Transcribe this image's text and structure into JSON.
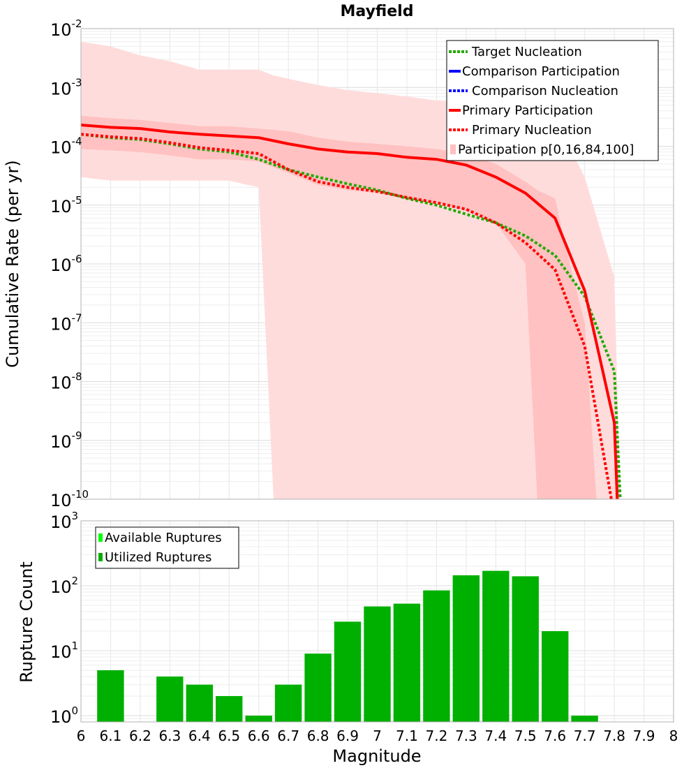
{
  "chart_data": [
    {
      "type": "line",
      "title": "Mayfield",
      "ylabel": "Cumulative Rate (per yr)",
      "xlabel": "",
      "xlim": [
        6,
        8
      ],
      "ylim": [
        1e-10,
        0.01
      ],
      "yscale": "log",
      "grid": true,
      "legend_position": "top-right",
      "y_ticks": [
        {
          "base": "10",
          "exp": "-10",
          "value": 1e-10
        },
        {
          "base": "10",
          "exp": "-9",
          "value": 1e-09
        },
        {
          "base": "10",
          "exp": "-8",
          "value": 1e-08
        },
        {
          "base": "10",
          "exp": "-7",
          "value": 1e-07
        },
        {
          "base": "10",
          "exp": "-6",
          "value": 1e-06
        },
        {
          "base": "10",
          "exp": "-5",
          "value": 1e-05
        },
        {
          "base": "10",
          "exp": "-4",
          "value": 0.0001
        },
        {
          "base": "10",
          "exp": "-3",
          "value": 0.001
        },
        {
          "base": "10",
          "exp": "-2",
          "value": 0.01
        }
      ],
      "legend": [
        {
          "label": "Target Nucleation",
          "color": "#22aa00",
          "style": "dotted"
        },
        {
          "label": "Comparison Participation",
          "color": "#0000ff",
          "style": "solid"
        },
        {
          "label": "Comparison Nucleation",
          "color": "#0000ff",
          "style": "dotted"
        },
        {
          "label": "Primary Participation",
          "color": "#ff0000",
          "style": "solid"
        },
        {
          "label": "Primary Nucleation",
          "color": "#ff0000",
          "style": "dotted"
        },
        {
          "label": "Participation p[0,16,84,100]",
          "color": "#ffc0c0",
          "style": "band"
        }
      ],
      "bands": {
        "outer": {
          "x": [
            6.0,
            6.1,
            6.2,
            6.3,
            6.4,
            6.5,
            6.6,
            6.65,
            6.7,
            6.8,
            6.9,
            7.0,
            7.1,
            7.2,
            7.3,
            7.4,
            7.5,
            7.6,
            7.7,
            7.8,
            7.82
          ],
          "high": [
            0.006,
            0.005,
            0.0035,
            0.0028,
            0.002,
            0.002,
            0.002,
            0.0016,
            0.0014,
            0.0011,
            0.0009,
            0.0008,
            0.0007,
            0.0006,
            0.00055,
            0.0005,
            0.0004,
            0.0003,
            3e-05,
            6e-07,
            1e-10
          ],
          "low": [
            3e-05,
            2.6e-05,
            2.6e-05,
            2.6e-05,
            2.6e-05,
            2.6e-05,
            2e-05,
            1e-10,
            1e-10,
            1e-10,
            1e-10,
            1e-10,
            1e-10,
            1e-10,
            1e-10,
            1e-10,
            1e-10,
            1e-10,
            1e-10,
            1e-10,
            1e-10
          ]
        },
        "inner": {
          "x": [
            6.0,
            6.1,
            6.2,
            6.3,
            6.4,
            6.5,
            6.6,
            6.7,
            6.8,
            6.9,
            7.0,
            7.1,
            7.2,
            7.3,
            7.4,
            7.5,
            7.54,
            7.6,
            7.65,
            7.7,
            7.74
          ],
          "high": [
            0.00033,
            0.0003,
            0.00028,
            0.00025,
            0.00022,
            0.00022,
            0.0002,
            0.00018,
            0.00014,
            0.00012,
            0.00011,
            0.0001,
            9e-05,
            7.5e-05,
            5e-05,
            2.5e-05,
            1.8e-05,
            1.3e-05,
            1e-06,
            1e-07,
            1e-10
          ],
          "low": [
            9e-05,
            8.5e-05,
            8e-05,
            7e-05,
            6e-05,
            6e-05,
            5.5e-05,
            3.5e-05,
            2.2e-05,
            1.8e-05,
            1.6e-05,
            1.3e-05,
            1.1e-05,
            8e-06,
            5e-06,
            1e-06,
            1e-10,
            1e-10,
            1e-10,
            1e-10,
            1e-10
          ]
        }
      },
      "series": [
        {
          "name": "Target Nucleation",
          "color": "#22aa00",
          "style": "dotted",
          "x": [
            6.0,
            6.1,
            6.2,
            6.3,
            6.4,
            6.5,
            6.6,
            6.7,
            6.8,
            6.9,
            7.0,
            7.1,
            7.2,
            7.3,
            7.4,
            7.5,
            7.6,
            7.7,
            7.8,
            7.82
          ],
          "y": [
            0.00016,
            0.00014,
            0.00013,
            0.00011,
            9e-05,
            8e-05,
            6e-05,
            4e-05,
            3e-05,
            2.3e-05,
            1.8e-05,
            1.3e-05,
            1e-05,
            7e-06,
            5e-06,
            3e-06,
            1.4e-06,
            2.8e-07,
            1.5e-08,
            1e-10
          ]
        },
        {
          "name": "Primary Participation",
          "color": "#ff0000",
          "style": "solid",
          "x": [
            6.0,
            6.1,
            6.2,
            6.3,
            6.4,
            6.5,
            6.6,
            6.7,
            6.8,
            6.9,
            7.0,
            7.1,
            7.2,
            7.3,
            7.4,
            7.5,
            7.6,
            7.7,
            7.8,
            7.81
          ],
          "y": [
            0.00023,
            0.00021,
            0.0002,
            0.000175,
            0.00016,
            0.00015,
            0.00014,
            0.00011,
            9e-05,
            8e-05,
            7.5e-05,
            6.5e-05,
            6e-05,
            4.8e-05,
            3e-05,
            1.6e-05,
            6e-06,
            3.5e-07,
            2e-09,
            1e-10
          ]
        },
        {
          "name": "Primary Nucleation",
          "color": "#ff0000",
          "style": "dotted",
          "x": [
            6.0,
            6.1,
            6.2,
            6.3,
            6.4,
            6.5,
            6.6,
            6.7,
            6.8,
            6.9,
            7.0,
            7.1,
            7.2,
            7.3,
            7.4,
            7.5,
            7.6,
            7.7,
            7.79
          ],
          "y": [
            0.00016,
            0.000145,
            0.000135,
            0.000115,
            9.5e-05,
            8.5e-05,
            7.5e-05,
            4e-05,
            2.5e-05,
            2e-05,
            1.7e-05,
            1.35e-05,
            1.1e-05,
            8.5e-06,
            5e-06,
            2.3e-06,
            8e-07,
            4e-08,
            1e-10
          ]
        }
      ]
    },
    {
      "type": "bar",
      "title": "",
      "xlabel": "Magnitude",
      "ylabel": "Rupture Count",
      "xlim": [
        6,
        8
      ],
      "ylim": [
        0.8,
        1000
      ],
      "yscale": "log",
      "grid": true,
      "legend_position": "top-left",
      "x_ticks": [
        "6",
        "6.1",
        "6.2",
        "6.3",
        "6.4",
        "6.5",
        "6.6",
        "6.7",
        "6.8",
        "6.9",
        "7",
        "7.1",
        "7.2",
        "7.3",
        "7.4",
        "7.5",
        "7.6",
        "7.7",
        "7.8",
        "7.9",
        "8"
      ],
      "y_ticks": [
        {
          "base": "10",
          "exp": "0",
          "value": 1
        },
        {
          "base": "10",
          "exp": "1",
          "value": 10
        },
        {
          "base": "10",
          "exp": "2",
          "value": 100
        },
        {
          "base": "10",
          "exp": "3",
          "value": 1000
        }
      ],
      "legend": [
        {
          "label": "Available Ruptures",
          "color": "#00ff00"
        },
        {
          "label": "Utilized Ruptures",
          "color": "#00b000"
        }
      ],
      "bar_color": "#00b000",
      "bin_width": 0.1,
      "bins": [
        6.1,
        6.2,
        6.3,
        6.4,
        6.5,
        6.6,
        6.7,
        6.8,
        6.9,
        7.0,
        7.1,
        7.2,
        7.3,
        7.4,
        7.5,
        7.6,
        7.7,
        7.8,
        7.9
      ],
      "values": [
        5,
        0,
        4,
        3,
        2,
        1,
        3,
        9,
        28,
        48,
        53,
        85,
        145,
        170,
        140,
        20,
        1,
        0,
        0
      ]
    }
  ]
}
